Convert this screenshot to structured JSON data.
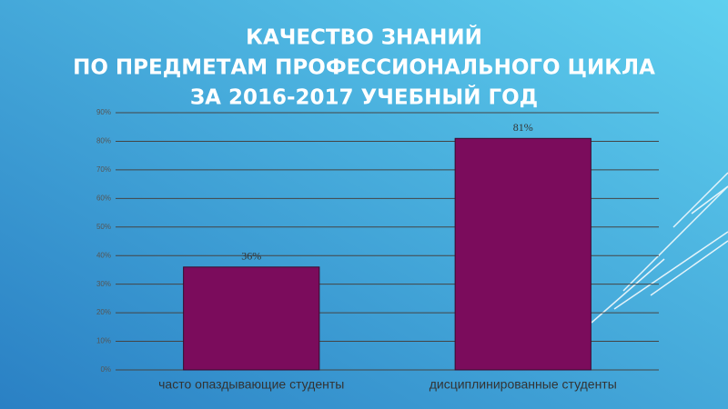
{
  "chart_data": {
    "type": "bar",
    "title": [
      "КАЧЕСТВО ЗНАНИЙ",
      "ПО ПРЕДМЕТАМ ПРОФЕССИОНАЛЬНОГО ЦИКЛА",
      "ЗА 2016-2017 УЧЕБНЫЙ ГОД"
    ],
    "categories": [
      "часто опаздывающие студенты",
      "дисциплинированные студенты"
    ],
    "values": [
      36,
      81
    ],
    "value_labels": [
      "36%",
      "81%"
    ],
    "color": "#7b0c5c",
    "ylim": [
      0,
      90
    ],
    "yticks": [
      {
        "value": 0,
        "label": "0%"
      },
      {
        "value": 10,
        "label": "10%"
      },
      {
        "value": 20,
        "label": "20%"
      },
      {
        "value": 30,
        "label": "30%"
      },
      {
        "value": 40,
        "label": "40%"
      },
      {
        "value": 50,
        "label": "50%"
      },
      {
        "value": 60,
        "label": "60%"
      },
      {
        "value": 70,
        "label": "70%"
      },
      {
        "value": 80,
        "label": "80%"
      },
      {
        "value": 90,
        "label": "90%"
      }
    ],
    "grid": true
  }
}
